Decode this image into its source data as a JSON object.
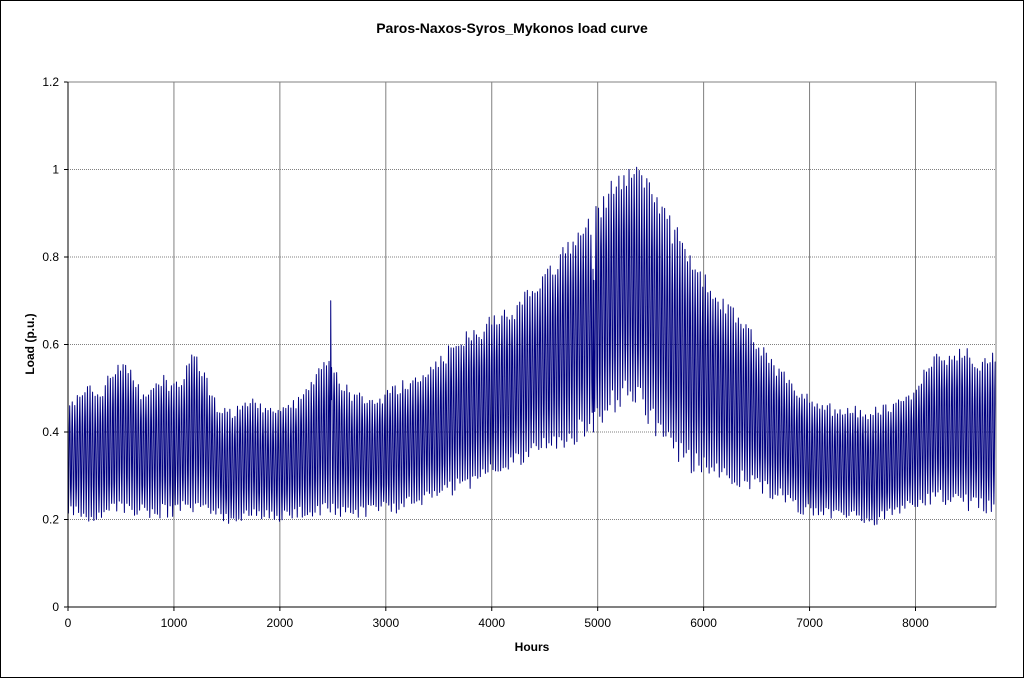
{
  "chart_data": {
    "type": "line",
    "title": "Paros-Naxos-Syros_Mykonos  load curve",
    "xlabel": "Hours",
    "ylabel": "Load (p.u.)",
    "xlim": [
      0,
      8760
    ],
    "ylim": [
      0,
      1.2
    ],
    "x_ticks": [
      "0",
      "1000",
      "2000",
      "3000",
      "4000",
      "5000",
      "6000",
      "7000",
      "8000"
    ],
    "y_ticks": [
      "0",
      "0.2",
      "0.4",
      "0.6",
      "0.8",
      "1",
      "1.2"
    ],
    "grid": true,
    "legend": "none",
    "series": [
      {
        "color": "#000080",
        "sampling_hours": 100,
        "envelope_x": [
          0,
          100,
          200,
          300,
          400,
          500,
          600,
          700,
          800,
          900,
          1000,
          1100,
          1200,
          1300,
          1400,
          1500,
          1600,
          1700,
          1800,
          1900,
          2000,
          2100,
          2200,
          2300,
          2400,
          2500,
          2600,
          2700,
          2800,
          2900,
          3000,
          3100,
          3200,
          3300,
          3400,
          3500,
          3600,
          3700,
          3800,
          3900,
          4000,
          4100,
          4200,
          4300,
          4400,
          4500,
          4600,
          4700,
          4800,
          4900,
          5000,
          5100,
          5200,
          5300,
          5400,
          5500,
          5600,
          5700,
          5800,
          5900,
          6000,
          6100,
          6200,
          6300,
          6400,
          6500,
          6600,
          6700,
          6800,
          6900,
          7000,
          7100,
          7200,
          7300,
          7400,
          7500,
          7600,
          7700,
          7800,
          7900,
          8000,
          8100,
          8200,
          8300,
          8400,
          8500,
          8600,
          8700,
          8760
        ],
        "daily_max": [
          0.45,
          0.48,
          0.5,
          0.48,
          0.52,
          0.55,
          0.54,
          0.48,
          0.5,
          0.52,
          0.5,
          0.53,
          0.58,
          0.52,
          0.46,
          0.44,
          0.45,
          0.47,
          0.46,
          0.44,
          0.45,
          0.46,
          0.47,
          0.5,
          0.54,
          0.55,
          0.5,
          0.48,
          0.48,
          0.47,
          0.48,
          0.5,
          0.51,
          0.52,
          0.54,
          0.56,
          0.58,
          0.6,
          0.62,
          0.63,
          0.65,
          0.66,
          0.67,
          0.7,
          0.72,
          0.74,
          0.78,
          0.82,
          0.84,
          0.86,
          0.9,
          0.95,
          0.96,
          0.99,
          0.97,
          0.95,
          0.9,
          0.86,
          0.82,
          0.78,
          0.74,
          0.72,
          0.68,
          0.66,
          0.64,
          0.6,
          0.57,
          0.54,
          0.51,
          0.49,
          0.47,
          0.46,
          0.45,
          0.45,
          0.45,
          0.44,
          0.44,
          0.45,
          0.46,
          0.47,
          0.5,
          0.54,
          0.56,
          0.57,
          0.58,
          0.57,
          0.56,
          0.55,
          0.58
        ],
        "daily_min": [
          0.22,
          0.22,
          0.21,
          0.21,
          0.22,
          0.23,
          0.23,
          0.22,
          0.22,
          0.22,
          0.22,
          0.23,
          0.23,
          0.23,
          0.22,
          0.2,
          0.21,
          0.21,
          0.21,
          0.21,
          0.21,
          0.21,
          0.22,
          0.22,
          0.23,
          0.23,
          0.22,
          0.22,
          0.22,
          0.23,
          0.23,
          0.23,
          0.24,
          0.24,
          0.25,
          0.26,
          0.27,
          0.28,
          0.29,
          0.3,
          0.31,
          0.32,
          0.33,
          0.34,
          0.36,
          0.37,
          0.38,
          0.39,
          0.4,
          0.42,
          0.44,
          0.46,
          0.48,
          0.5,
          0.48,
          0.44,
          0.4,
          0.37,
          0.35,
          0.33,
          0.33,
          0.32,
          0.31,
          0.3,
          0.29,
          0.28,
          0.27,
          0.26,
          0.25,
          0.23,
          0.22,
          0.22,
          0.21,
          0.21,
          0.21,
          0.21,
          0.19,
          0.21,
          0.22,
          0.23,
          0.24,
          0.25,
          0.25,
          0.25,
          0.24,
          0.24,
          0.23,
          0.23,
          0.23
        ],
        "spikes": [
          [
            2480,
            0.7
          ],
          [
            4960,
            0.4
          ]
        ]
      }
    ]
  }
}
